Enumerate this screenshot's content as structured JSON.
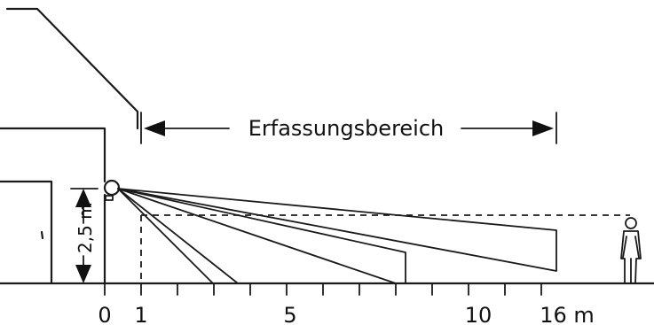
{
  "labels": {
    "range": "Erfassungsbereich",
    "height": "2,5 m"
  },
  "ticks": {
    "t0": "0",
    "t1": "1",
    "t5": "5",
    "t10": "10",
    "t16": "16 m"
  },
  "icons": {
    "sensor": "motion-sensor-icon",
    "person": "person-icon",
    "house": "house-outline-icon"
  }
}
